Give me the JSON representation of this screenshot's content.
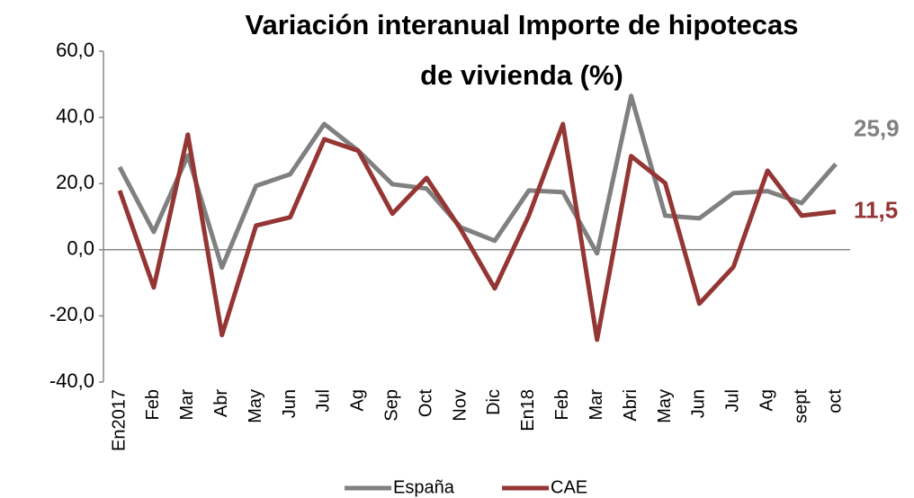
{
  "chart_data": {
    "type": "line",
    "title": [
      "Variación interanual Importe de hipotecas",
      "de vivienda (%)"
    ],
    "categories": [
      "En2017",
      "Feb",
      "Mar",
      "Abr",
      "May",
      "Jun",
      "Jul",
      "Ag",
      "Sep",
      "Oct",
      "Nov",
      "Dic",
      "En18",
      "Feb",
      "Mar",
      "Abri",
      "May",
      "Jun",
      "Jul",
      "Ag",
      "sept",
      "oct"
    ],
    "series": [
      {
        "name": "España",
        "color": "#808080",
        "values": [
          25.0,
          5.4,
          28.5,
          -5.4,
          19.3,
          22.8,
          38.0,
          29.9,
          19.8,
          18.5,
          6.8,
          2.7,
          17.9,
          17.4,
          -1.1,
          46.5,
          10.3,
          9.5,
          17.1,
          17.7,
          14.1,
          25.9
        ],
        "value_labels": [
          null,
          null,
          null,
          null,
          null,
          null,
          null,
          null,
          null,
          null,
          null,
          null,
          null,
          null,
          null,
          null,
          null,
          null,
          null,
          null,
          null,
          "25,9"
        ]
      },
      {
        "name": "CAE",
        "color": "#943634",
        "values": [
          17.9,
          -11.4,
          34.8,
          -25.8,
          7.3,
          9.8,
          33.4,
          29.9,
          10.9,
          21.7,
          6.2,
          -11.7,
          10.3,
          38.0,
          -27.2,
          28.3,
          20.1,
          -16.3,
          -5.2,
          23.9,
          10.3,
          11.5
        ],
        "value_labels": [
          null,
          null,
          null,
          null,
          null,
          null,
          null,
          null,
          null,
          null,
          null,
          null,
          null,
          null,
          null,
          null,
          null,
          null,
          null,
          null,
          null,
          "11,5"
        ]
      }
    ],
    "ylim": [
      -40,
      60
    ],
    "yticks": [
      {
        "value": -40,
        "label": "-40,0"
      },
      {
        "value": -20,
        "label": "-20,0"
      },
      {
        "value": 0,
        "label": "0,0"
      },
      {
        "value": 20,
        "label": "20,0"
      },
      {
        "value": 40,
        "label": "40,0"
      },
      {
        "value": 60,
        "label": "60,0"
      }
    ],
    "legend": "bottom"
  }
}
